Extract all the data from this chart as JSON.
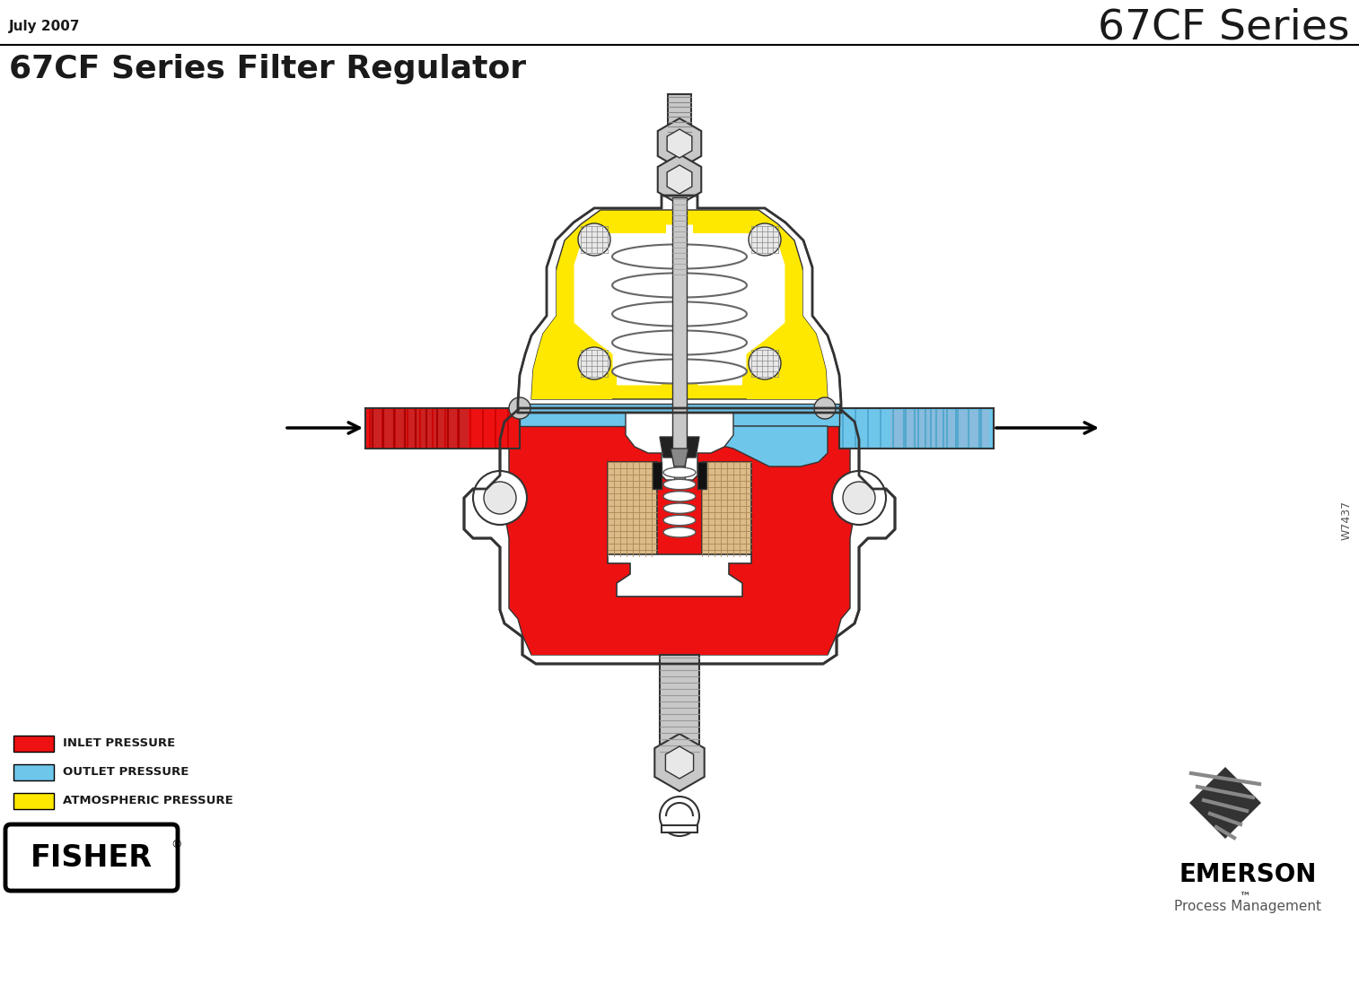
{
  "title_left": "July 2007",
  "title_right": "67CF Series",
  "main_title": "67CF Series Filter Regulator",
  "legend_items": [
    {
      "color": "#EE1111",
      "label": "INLET PRESSURE"
    },
    {
      "color": "#6EC6EA",
      "label": "OUTLET PRESSURE"
    },
    {
      "color": "#FFE800",
      "label": "ATMOSPHERIC PRESSURE"
    }
  ],
  "fisher_label": "FISHER",
  "emerson_label": "EMERSON",
  "emerson_sub": "Process Management",
  "watermark": "W7437",
  "bg_color": "#FFFFFF",
  "text_color": "#1A1A1A",
  "inlet_color": "#EE1111",
  "outlet_color": "#6EC6EA",
  "atmo_color": "#FFE800",
  "outline_color": "#333333",
  "gray_fill": "#C8C8C8",
  "light_gray": "#E8E8E8"
}
